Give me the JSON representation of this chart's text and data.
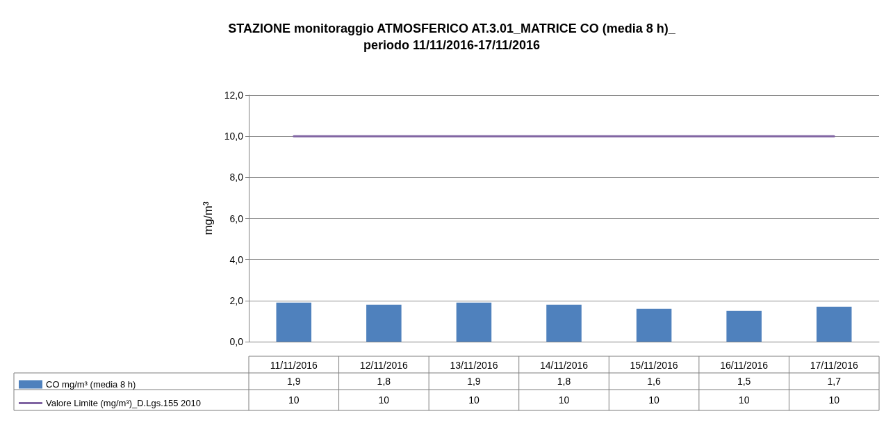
{
  "chart_data": {
    "type": "bar",
    "title": "STAZIONE monitoraggio ATMOSFERICO AT.3.01_MATRICE CO (media 8 h)_\nperiodo 11/11/2016-17/11/2016",
    "ylabel": "mg/m³",
    "categories": [
      "11/11/2016",
      "12/11/2016",
      "13/11/2016",
      "14/11/2016",
      "15/11/2016",
      "16/11/2016",
      "17/11/2016"
    ],
    "series": [
      {
        "name": "CO mg/m³ (media 8 h)",
        "color": "#4f81bd",
        "values": [
          1.9,
          1.8,
          1.9,
          1.8,
          1.6,
          1.5,
          1.7
        ],
        "value_labels": [
          "1,9",
          "1,8",
          "1,9",
          "1,8",
          "1,6",
          "1,5",
          "1,7"
        ]
      },
      {
        "name": "Valore Limite (mg/m³)_D.Lgs.155 2010",
        "type": "line",
        "color": "#8064a2",
        "marker": "none",
        "values": [
          10,
          10,
          10,
          10,
          10,
          10,
          10
        ],
        "value_labels": [
          "10",
          "10",
          "10",
          "10",
          "10",
          "10",
          "10"
        ]
      }
    ],
    "ylim": [
      0,
      12
    ],
    "yticks": [
      {
        "value": 0,
        "label": "0,0"
      },
      {
        "value": 2,
        "label": "2,0"
      },
      {
        "value": 4,
        "label": "4,0"
      },
      {
        "value": 6,
        "label": "6,0"
      },
      {
        "value": 8,
        "label": "8,0"
      },
      {
        "value": 10,
        "label": "10,0"
      },
      {
        "value": 12,
        "label": "12,0"
      }
    ],
    "grid": "y",
    "legend": "bottom"
  }
}
